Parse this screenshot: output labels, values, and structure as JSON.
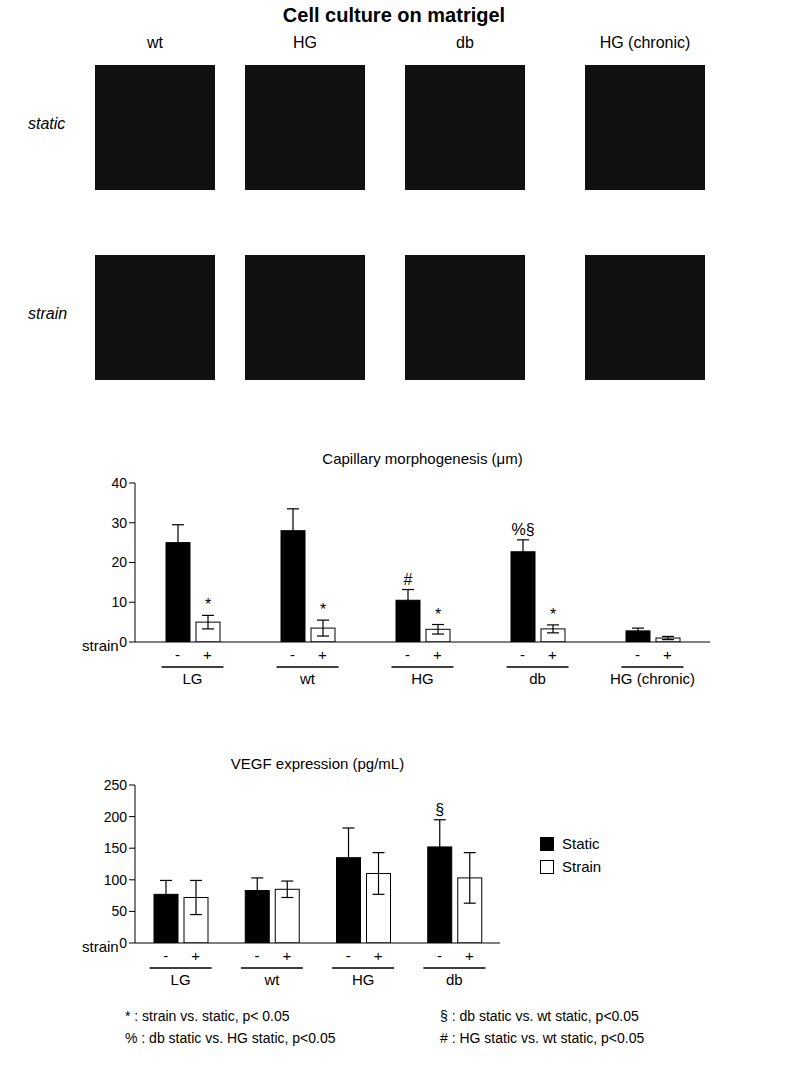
{
  "title": "Cell culture on matrigel",
  "image_panels": {
    "columns": [
      "wt",
      "HG",
      "db",
      "HG (chronic)"
    ],
    "rows": [
      "static",
      "strain"
    ]
  },
  "chart_data": [
    {
      "type": "bar",
      "title": "Capillary morphogenesis (μm)",
      "x_label": "strain",
      "categories": [
        "LG",
        "wt",
        "HG",
        "db",
        "HG (chronic)"
      ],
      "bar_labels": [
        "-",
        "+"
      ],
      "ylim": [
        0,
        40
      ],
      "yticks": [
        0,
        10,
        20,
        30,
        40
      ],
      "grid": false,
      "series": [
        {
          "color": "#000000",
          "values": [
            25,
            28,
            10.5,
            22.7,
            2.8
          ],
          "errors": [
            4.5,
            5.5,
            2.7,
            3,
            0.7
          ],
          "annotations": [
            null,
            null,
            "#",
            "%§",
            null
          ]
        },
        {
          "color": "#ffffff",
          "values": [
            5,
            3.5,
            3.2,
            3.3,
            1
          ],
          "errors": [
            1.7,
            2,
            1.2,
            1,
            0.4
          ],
          "annotations": [
            "*",
            "*",
            "*",
            "*",
            null
          ]
        }
      ]
    },
    {
      "type": "bar",
      "title": "VEGF expression (pg/mL)",
      "x_label": "strain",
      "categories": [
        "LG",
        "wt",
        "HG",
        "db"
      ],
      "bar_labels": [
        "-",
        "+"
      ],
      "ylim": [
        0,
        250
      ],
      "yticks": [
        0,
        50,
        100,
        150,
        200,
        250
      ],
      "grid": false,
      "legend": "right",
      "series": [
        {
          "name": "Static",
          "color": "#000000",
          "values": [
            77,
            83,
            135,
            152
          ],
          "errors": [
            22,
            20,
            47,
            43
          ],
          "annotations": [
            null,
            null,
            null,
            "§"
          ]
        },
        {
          "name": "Strain",
          "color": "#ffffff",
          "values": [
            72,
            85,
            110,
            103
          ],
          "errors": [
            27,
            13,
            33,
            40
          ],
          "annotations": [
            null,
            null,
            null,
            null
          ]
        }
      ]
    }
  ],
  "footnotes": [
    [
      "* : strain vs. static, p< 0.05",
      "% : db static vs. HG static, p<0.05"
    ],
    [
      "§ : db static vs. wt static, p<0.05",
      "# : HG static vs. wt static, p<0.05"
    ]
  ]
}
